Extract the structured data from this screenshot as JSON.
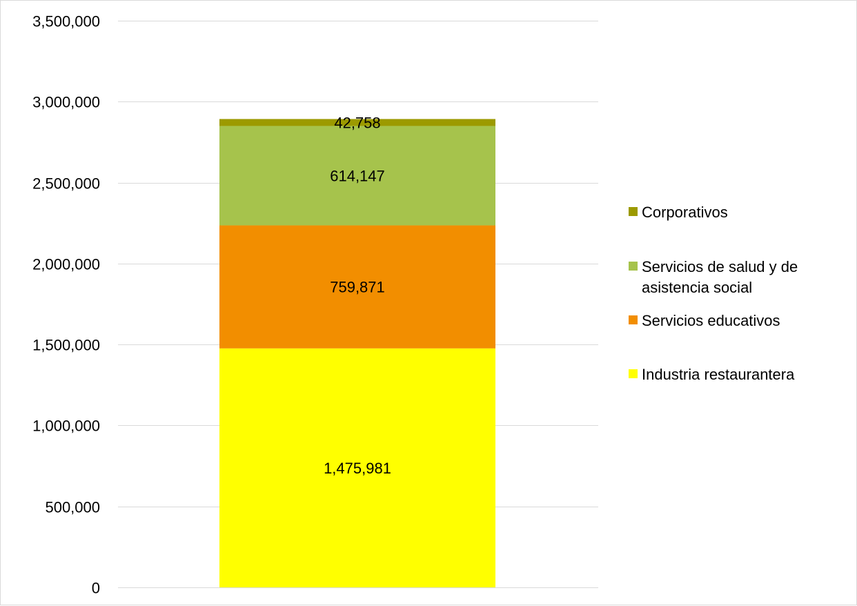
{
  "chart_data": {
    "type": "bar",
    "stacked": true,
    "categories": [
      ""
    ],
    "series": [
      {
        "name": "Industria restaurantera",
        "values": [
          1475981
        ],
        "label": "1,475,981",
        "color": "#ffff00"
      },
      {
        "name": "Servicios educativos",
        "values": [
          759871
        ],
        "label": "759,871",
        "color": "#f28e00"
      },
      {
        "name": "Servicios de salud y de asistencia social",
        "values": [
          614147
        ],
        "label": "614,147",
        "color": "#a6c34c"
      },
      {
        "name": "Corporativos",
        "values": [
          42758
        ],
        "label": "42,758",
        "color": "#9c9a00"
      }
    ],
    "ylim": [
      0,
      3500000
    ],
    "yticks": [
      {
        "value": 0,
        "label": "0"
      },
      {
        "value": 500000,
        "label": "500,000"
      },
      {
        "value": 1000000,
        "label": "1,000,000"
      },
      {
        "value": 1500000,
        "label": "1,500,000"
      },
      {
        "value": 2000000,
        "label": "2,000,000"
      },
      {
        "value": 2500000,
        "label": "2,500,000"
      },
      {
        "value": 3000000,
        "label": "3,000,000"
      },
      {
        "value": 3500000,
        "label": "3,500,000"
      }
    ],
    "title": "",
    "xlabel": "",
    "ylabel": "",
    "grid": true,
    "legend_position": "right",
    "legend_entries": [
      {
        "lines": [
          "Corporativos"
        ],
        "color": "#9c9a00"
      },
      {
        "lines": [
          "Servicios de salud y de",
          "asistencia social"
        ],
        "color": "#a6c34c"
      },
      {
        "lines": [
          "Servicios educativos"
        ],
        "color": "#f28e00"
      },
      {
        "lines": [
          "Industria restaurantera"
        ],
        "color": "#ffff00"
      }
    ],
    "gridline_color": "#d9d9d9"
  }
}
